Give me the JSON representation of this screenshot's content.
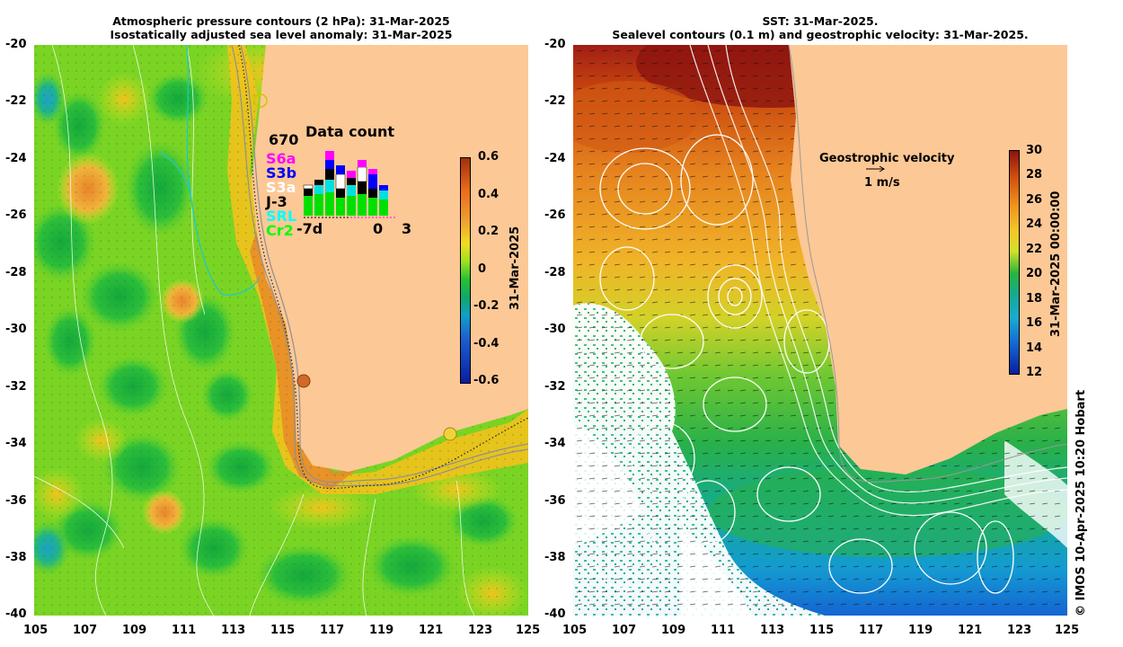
{
  "left_panel": {
    "title_line1": "Atmospheric pressure contours (2 hPa): 31-Mar-2025",
    "title_line2": "Isostatically adjusted sea level anomaly: 31-Mar-2025",
    "y_ticks": [
      "-20",
      "-22",
      "-24",
      "-26",
      "-28",
      "-30",
      "-32",
      "-34",
      "-36",
      "-38",
      "-40"
    ],
    "x_ticks": [
      "105",
      "107",
      "109",
      "111",
      "113",
      "115",
      "117",
      "119",
      "121",
      "123",
      "125"
    ],
    "colorbar_ticks": [
      "0.6",
      "0.4",
      "0.2",
      "0",
      "-0.2",
      "-0.4",
      "-0.6"
    ],
    "colorbar_label": "31-Mar-2025",
    "inset": {
      "max_count": "670",
      "title": "Data count",
      "x_labels": [
        "-7d",
        "0",
        "3"
      ],
      "satellites": [
        {
          "name": "S6a",
          "color": "#ff00ff"
        },
        {
          "name": "S3b",
          "color": "#0000ff"
        },
        {
          "name": "S3a",
          "color": "#ffffff"
        },
        {
          "name": "J-3",
          "color": "#000000"
        },
        {
          "name": "SRL",
          "color": "#00ffff"
        },
        {
          "name": "Cr2",
          "color": "#00ff00"
        }
      ]
    }
  },
  "right_panel": {
    "title_line1": "SST: 31-Mar-2025.",
    "title_line2": "Sealevel contours (0.1 m) and geostrophic velocity: 31-Mar-2025.",
    "y_ticks": [
      "-20",
      "-22",
      "-24",
      "-26",
      "-28",
      "-30",
      "-32",
      "-34",
      "-36",
      "-38",
      "-40"
    ],
    "x_ticks": [
      "105",
      "107",
      "109",
      "111",
      "113",
      "115",
      "117",
      "119",
      "121",
      "123",
      "125"
    ],
    "colorbar_ticks": [
      "30",
      "28",
      "26",
      "24",
      "22",
      "20",
      "18",
      "16",
      "14",
      "12"
    ],
    "colorbar_label": "31-Mar-2025 00:00:00",
    "velocity_label": "Geostrophic velocity",
    "velocity_scale": "1 m/s"
  },
  "credit": "© IMOS 10-Apr-2025 10:20 Hobart"
}
